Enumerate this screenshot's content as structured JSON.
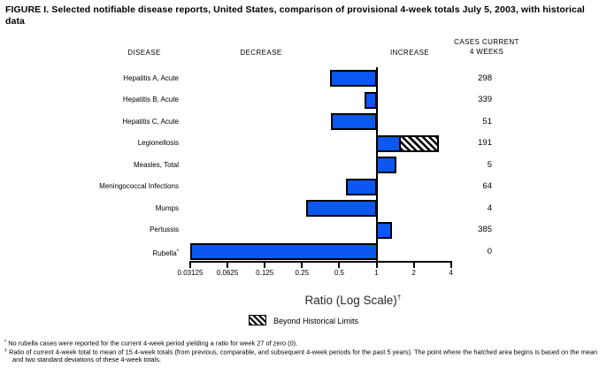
{
  "title": {
    "line1": "FIGURE I. Selected notifiable disease reports, United States, comparison of provisional 4-week totals July 5, 2003, with historical",
    "line2": "data"
  },
  "column_headers": {
    "disease": "DISEASE",
    "decrease": "DECREASE",
    "increase": "INCREASE",
    "cases_line1": "CASES CURRENT",
    "cases_line2": "4 WEEKS"
  },
  "chart_data": {
    "type": "bar",
    "orientation": "horizontal",
    "x_axis": {
      "label": "Ratio (Log Scale)",
      "label_superscript": "†",
      "scale": "log2",
      "min": 0.03125,
      "max": 4,
      "ticks": [
        0.03125,
        0.0625,
        0.125,
        0.25,
        0.5,
        1,
        2,
        4
      ],
      "baseline": 1
    },
    "rows": [
      {
        "disease": "Hepatitis A, Acute",
        "ratio": 0.42,
        "cases": 298
      },
      {
        "disease": "Hepatitis B, Acute",
        "ratio": 0.8,
        "cases": 339
      },
      {
        "disease": "Hepatitis C, Acute",
        "ratio": 0.43,
        "cases": 51
      },
      {
        "disease": "Legionellosis",
        "ratio": 3.2,
        "beyond_limit_from": 1.57,
        "cases": 191
      },
      {
        "disease": "Measles, Total",
        "ratio": 1.45,
        "cases": 5
      },
      {
        "disease": "Meningococcal Infections",
        "ratio": 0.57,
        "cases": 64
      },
      {
        "disease": "Mumps",
        "ratio": 0.27,
        "cases": 4
      },
      {
        "disease": "Pertussis",
        "ratio": 1.34,
        "cases": 385
      },
      {
        "disease": "Rubella",
        "label_superscript": "*",
        "ratio": 0,
        "clamp_to_min": true,
        "cases": 0
      }
    ],
    "legend": {
      "swatch": "diagonal-hatch",
      "label": "Beyond Historical Limits"
    },
    "grid": false,
    "legend_position": "bottom-center"
  },
  "footnotes": [
    {
      "marker": "*",
      "text": "No rubella cases were reported for the current 4-week period yielding a ratio for week 27 of zero (0)."
    },
    {
      "marker": "†",
      "text": "Ratio of current 4-week total to mean of 15 4-week totals (from previous, comparable, and subsequent 4-week periods for the past 5 years). The point where the hatched area begins is based on the mean and two standard deviations of these 4-week totals."
    }
  ],
  "colors": {
    "bar_fill": "#0b57f0",
    "bar_border": "#000000",
    "background": "#ffffff"
  }
}
